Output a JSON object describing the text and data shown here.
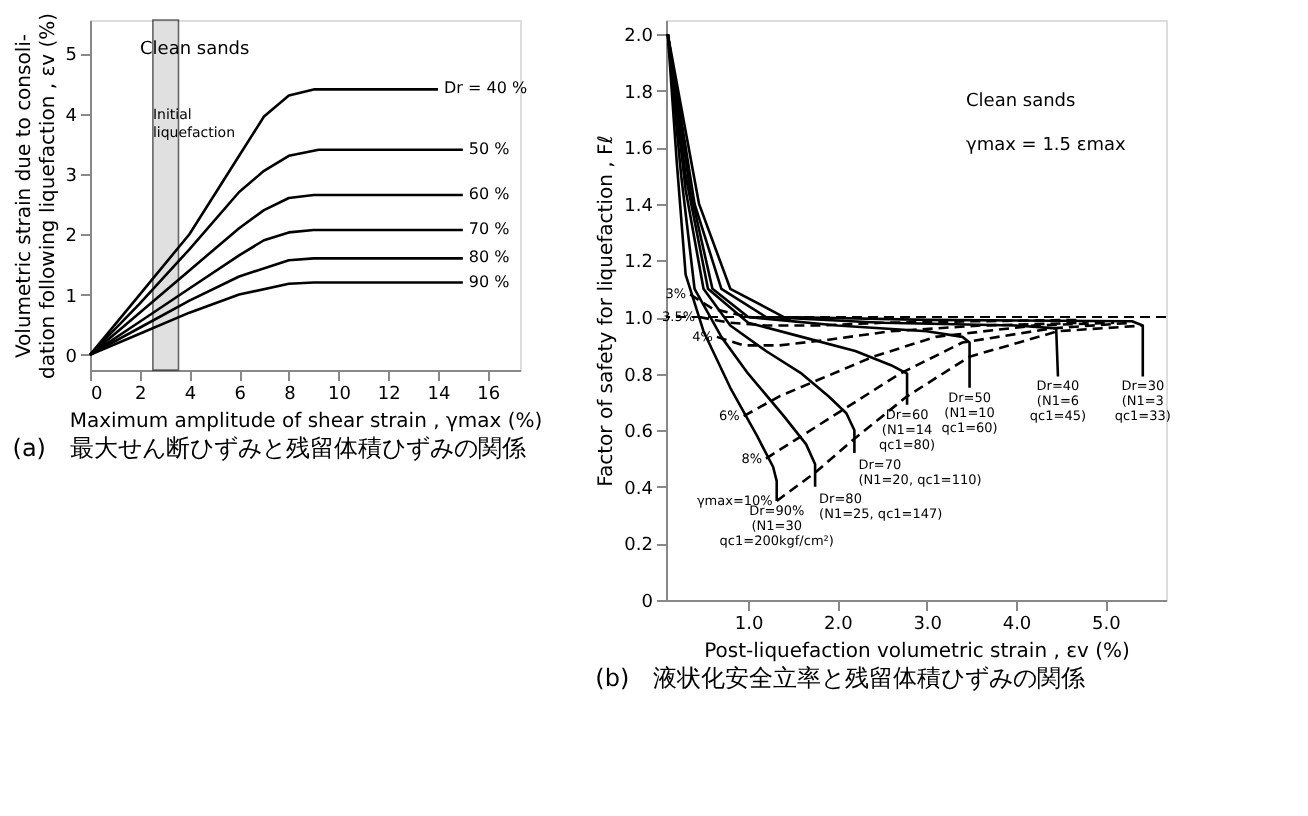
{
  "chart_data": [
    {
      "type": "line",
      "title": "(a)　最大せん断ひずみと残留体積ひずみの関係",
      "xlabel": "Maximum amplitude of shear strain , γmax (%)",
      "ylabel": "Volumetric strain due to consoli-\ndation following liquefaction , εv (%)",
      "xlim": [
        0,
        17.3
      ],
      "xticks": [
        0,
        2,
        4,
        6,
        8,
        10,
        12,
        14,
        16
      ],
      "ylim": [
        -0.25,
        5.55
      ],
      "yticks": [
        0,
        1,
        2,
        3,
        4,
        5
      ],
      "line_style": "solid",
      "annotations": [
        "Clean sands"
      ],
      "bands": [
        {
          "axis": "x",
          "from": 2.53,
          "to": 3.56,
          "label": "Initial\nliquefaction",
          "color": "#cccccc"
        }
      ],
      "series": [
        {
          "name": "Dr = 40 %",
          "color": "#000000",
          "x": [
            0,
            2,
            4,
            6,
            7,
            8,
            9,
            14
          ],
          "values": [
            0,
            1.0,
            2.0,
            3.3,
            3.95,
            4.3,
            4.4,
            4.4
          ]
        },
        {
          "name": "50 %",
          "color": "#000000",
          "x": [
            0,
            2,
            4,
            6,
            7,
            8,
            9.2,
            15
          ],
          "values": [
            0,
            0.85,
            1.75,
            2.7,
            3.05,
            3.3,
            3.4,
            3.4
          ]
        },
        {
          "name": "60 %",
          "color": "#000000",
          "x": [
            0,
            2,
            4,
            6,
            7,
            8,
            9,
            15
          ],
          "values": [
            0,
            0.7,
            1.4,
            2.1,
            2.4,
            2.6,
            2.65,
            2.65
          ]
        },
        {
          "name": "70 %",
          "color": "#000000",
          "x": [
            0,
            2,
            4,
            6,
            7,
            8,
            9,
            15
          ],
          "values": [
            0,
            0.55,
            1.1,
            1.65,
            1.9,
            2.03,
            2.07,
            2.07
          ]
        },
        {
          "name": "80 %",
          "color": "#000000",
          "x": [
            0,
            2,
            4,
            6,
            8,
            9,
            15
          ],
          "values": [
            0,
            0.45,
            0.9,
            1.3,
            1.57,
            1.6,
            1.6
          ]
        },
        {
          "name": "90 %",
          "color": "#000000",
          "x": [
            0,
            2,
            4,
            6,
            8,
            9,
            15
          ],
          "values": [
            0,
            0.35,
            0.7,
            1.0,
            1.18,
            1.2,
            1.2
          ]
        }
      ]
    },
    {
      "type": "line",
      "title": "(b)　液状化安全立率と残留体積ひずみの関係",
      "xlabel": "Post-liquefaction volumetric strain , εv (%)",
      "ylabel": "Factor of safety for liquefaction , Fℓ",
      "xlim": [
        0.08,
        5.68
      ],
      "xticks": [
        {
          "value": 1,
          "label": "1.0"
        },
        {
          "value": 2,
          "label": "2.0"
        },
        {
          "value": 3,
          "label": "3.0"
        },
        {
          "value": 4,
          "label": "4.0"
        },
        {
          "value": 5,
          "label": "5.0"
        }
      ],
      "ylim": [
        0,
        2.05
      ],
      "yticks": [
        {
          "value": 0,
          "label": "0"
        },
        0.2,
        0.4,
        0.6,
        0.8,
        {
          "value": 1,
          "label": "1.0"
        },
        1.2,
        1.4,
        1.6,
        1.8,
        {
          "value": 2,
          "label": "2.0"
        }
      ],
      "annotations": [
        "Clean sands",
        "γmax = 1.5 εmax"
      ],
      "ref_lines": [
        {
          "axis": "y",
          "value": 1.0,
          "line_style": "dashed",
          "color": "#000000"
        }
      ],
      "series": [
        {
          "name": "Dr=90%\n(N1=30\nqc1=200kgf/cm²)",
          "color": "#000000",
          "line_style": "solid",
          "x": [
            0.1,
            0.2,
            0.3,
            0.5,
            0.8,
            1.1,
            1.28,
            1.32,
            1.32
          ],
          "values": [
            2.0,
            1.55,
            1.15,
            0.95,
            0.75,
            0.58,
            0.47,
            0.42,
            0.35
          ]
        },
        {
          "name": "Dr=80\n(N1=25, qc1=147)",
          "color": "#000000",
          "line_style": "solid",
          "x": [
            0.1,
            0.25,
            0.4,
            0.7,
            1.0,
            1.4,
            1.65,
            1.75,
            1.75
          ],
          "values": [
            2.0,
            1.5,
            1.1,
            0.93,
            0.8,
            0.65,
            0.55,
            0.48,
            0.4
          ]
        },
        {
          "name": "Dr=70\n(N1=20, qc1=110)",
          "color": "#000000",
          "line_style": "solid",
          "x": [
            0.1,
            0.3,
            0.5,
            0.8,
            1.2,
            1.6,
            1.9,
            2.1,
            2.19,
            2.19
          ],
          "values": [
            2.0,
            1.45,
            1.1,
            0.97,
            0.88,
            0.8,
            0.72,
            0.66,
            0.6,
            0.52
          ]
        },
        {
          "name": "Dr=60\n(N1=14\nqc1=80)",
          "color": "#000000",
          "line_style": "solid",
          "x": [
            0.1,
            0.3,
            0.55,
            1.0,
            1.6,
            2.2,
            2.6,
            2.78,
            2.78
          ],
          "values": [
            2.0,
            1.5,
            1.1,
            0.98,
            0.93,
            0.88,
            0.83,
            0.8,
            0.69
          ]
        },
        {
          "name": "Dr=50\n(N1=10\nqc1=60)",
          "color": "#000000",
          "line_style": "solid",
          "x": [
            0.1,
            0.35,
            0.6,
            1.0,
            2.0,
            3.0,
            3.4,
            3.48,
            3.48
          ],
          "values": [
            2.0,
            1.45,
            1.1,
            1.0,
            0.97,
            0.95,
            0.93,
            0.91,
            0.75
          ]
        },
        {
          "name": "Dr=40\n(N1=6\nqc1=45)",
          "color": "#000000",
          "line_style": "solid",
          "x": [
            0.1,
            0.4,
            0.7,
            1.2,
            2.5,
            4.0,
            4.45,
            4.47
          ],
          "values": [
            2.0,
            1.4,
            1.1,
            1.0,
            0.98,
            0.97,
            0.96,
            0.79
          ]
        },
        {
          "name": "Dr=30\n(N1=3\nqc1=33)",
          "color": "#000000",
          "line_style": "solid",
          "x": [
            0.1,
            0.45,
            0.8,
            1.4,
            3.0,
            5.3,
            5.42,
            5.42
          ],
          "values": [
            2.0,
            1.4,
            1.1,
            1.0,
            0.99,
            0.985,
            0.97,
            0.79
          ]
        },
        {
          "name": "γmax=10%",
          "color": "#000000",
          "line_style": "dashed",
          "x": [
            1.32,
            1.75,
            2.19,
            2.78,
            3.48,
            4.47,
            5.42
          ],
          "values": [
            0.35,
            0.45,
            0.57,
            0.72,
            0.86,
            0.95,
            0.97
          ]
        },
        {
          "name": "8%",
          "color": "#000000",
          "line_style": "dashed",
          "x": [
            1.2,
            1.6,
            2.1,
            2.7,
            3.4,
            4.4,
            5.3
          ],
          "values": [
            0.5,
            0.58,
            0.68,
            0.8,
            0.91,
            0.96,
            0.98
          ]
        },
        {
          "name": "6%",
          "color": "#000000",
          "line_style": "dashed",
          "x": [
            0.95,
            1.35,
            1.8,
            2.4,
            3.1,
            4.2,
            5.1
          ],
          "values": [
            0.65,
            0.72,
            0.78,
            0.86,
            0.93,
            0.97,
            0.98
          ]
        },
        {
          "name": "4%",
          "color": "#000000",
          "line_style": "dashed",
          "x": [
            0.65,
            0.95,
            1.35,
            1.9,
            2.6,
            3.6,
            4.8
          ],
          "values": [
            0.93,
            0.9,
            0.9,
            0.92,
            0.95,
            0.97,
            0.98
          ]
        },
        {
          "name": "3.5%",
          "color": "#000000",
          "line_style": "dashed",
          "x": [
            0.45,
            0.8,
            1.2,
            1.8,
            2.5,
            3.5,
            4.7
          ],
          "values": [
            1.0,
            0.98,
            0.97,
            0.97,
            0.98,
            0.985,
            0.99
          ]
        },
        {
          "name": "3%",
          "color": "#000000",
          "line_style": "dashed",
          "x": [
            0.35,
            0.6,
            1.0,
            1.5
          ],
          "values": [
            1.08,
            1.03,
            1.0,
            0.99
          ]
        }
      ]
    }
  ]
}
